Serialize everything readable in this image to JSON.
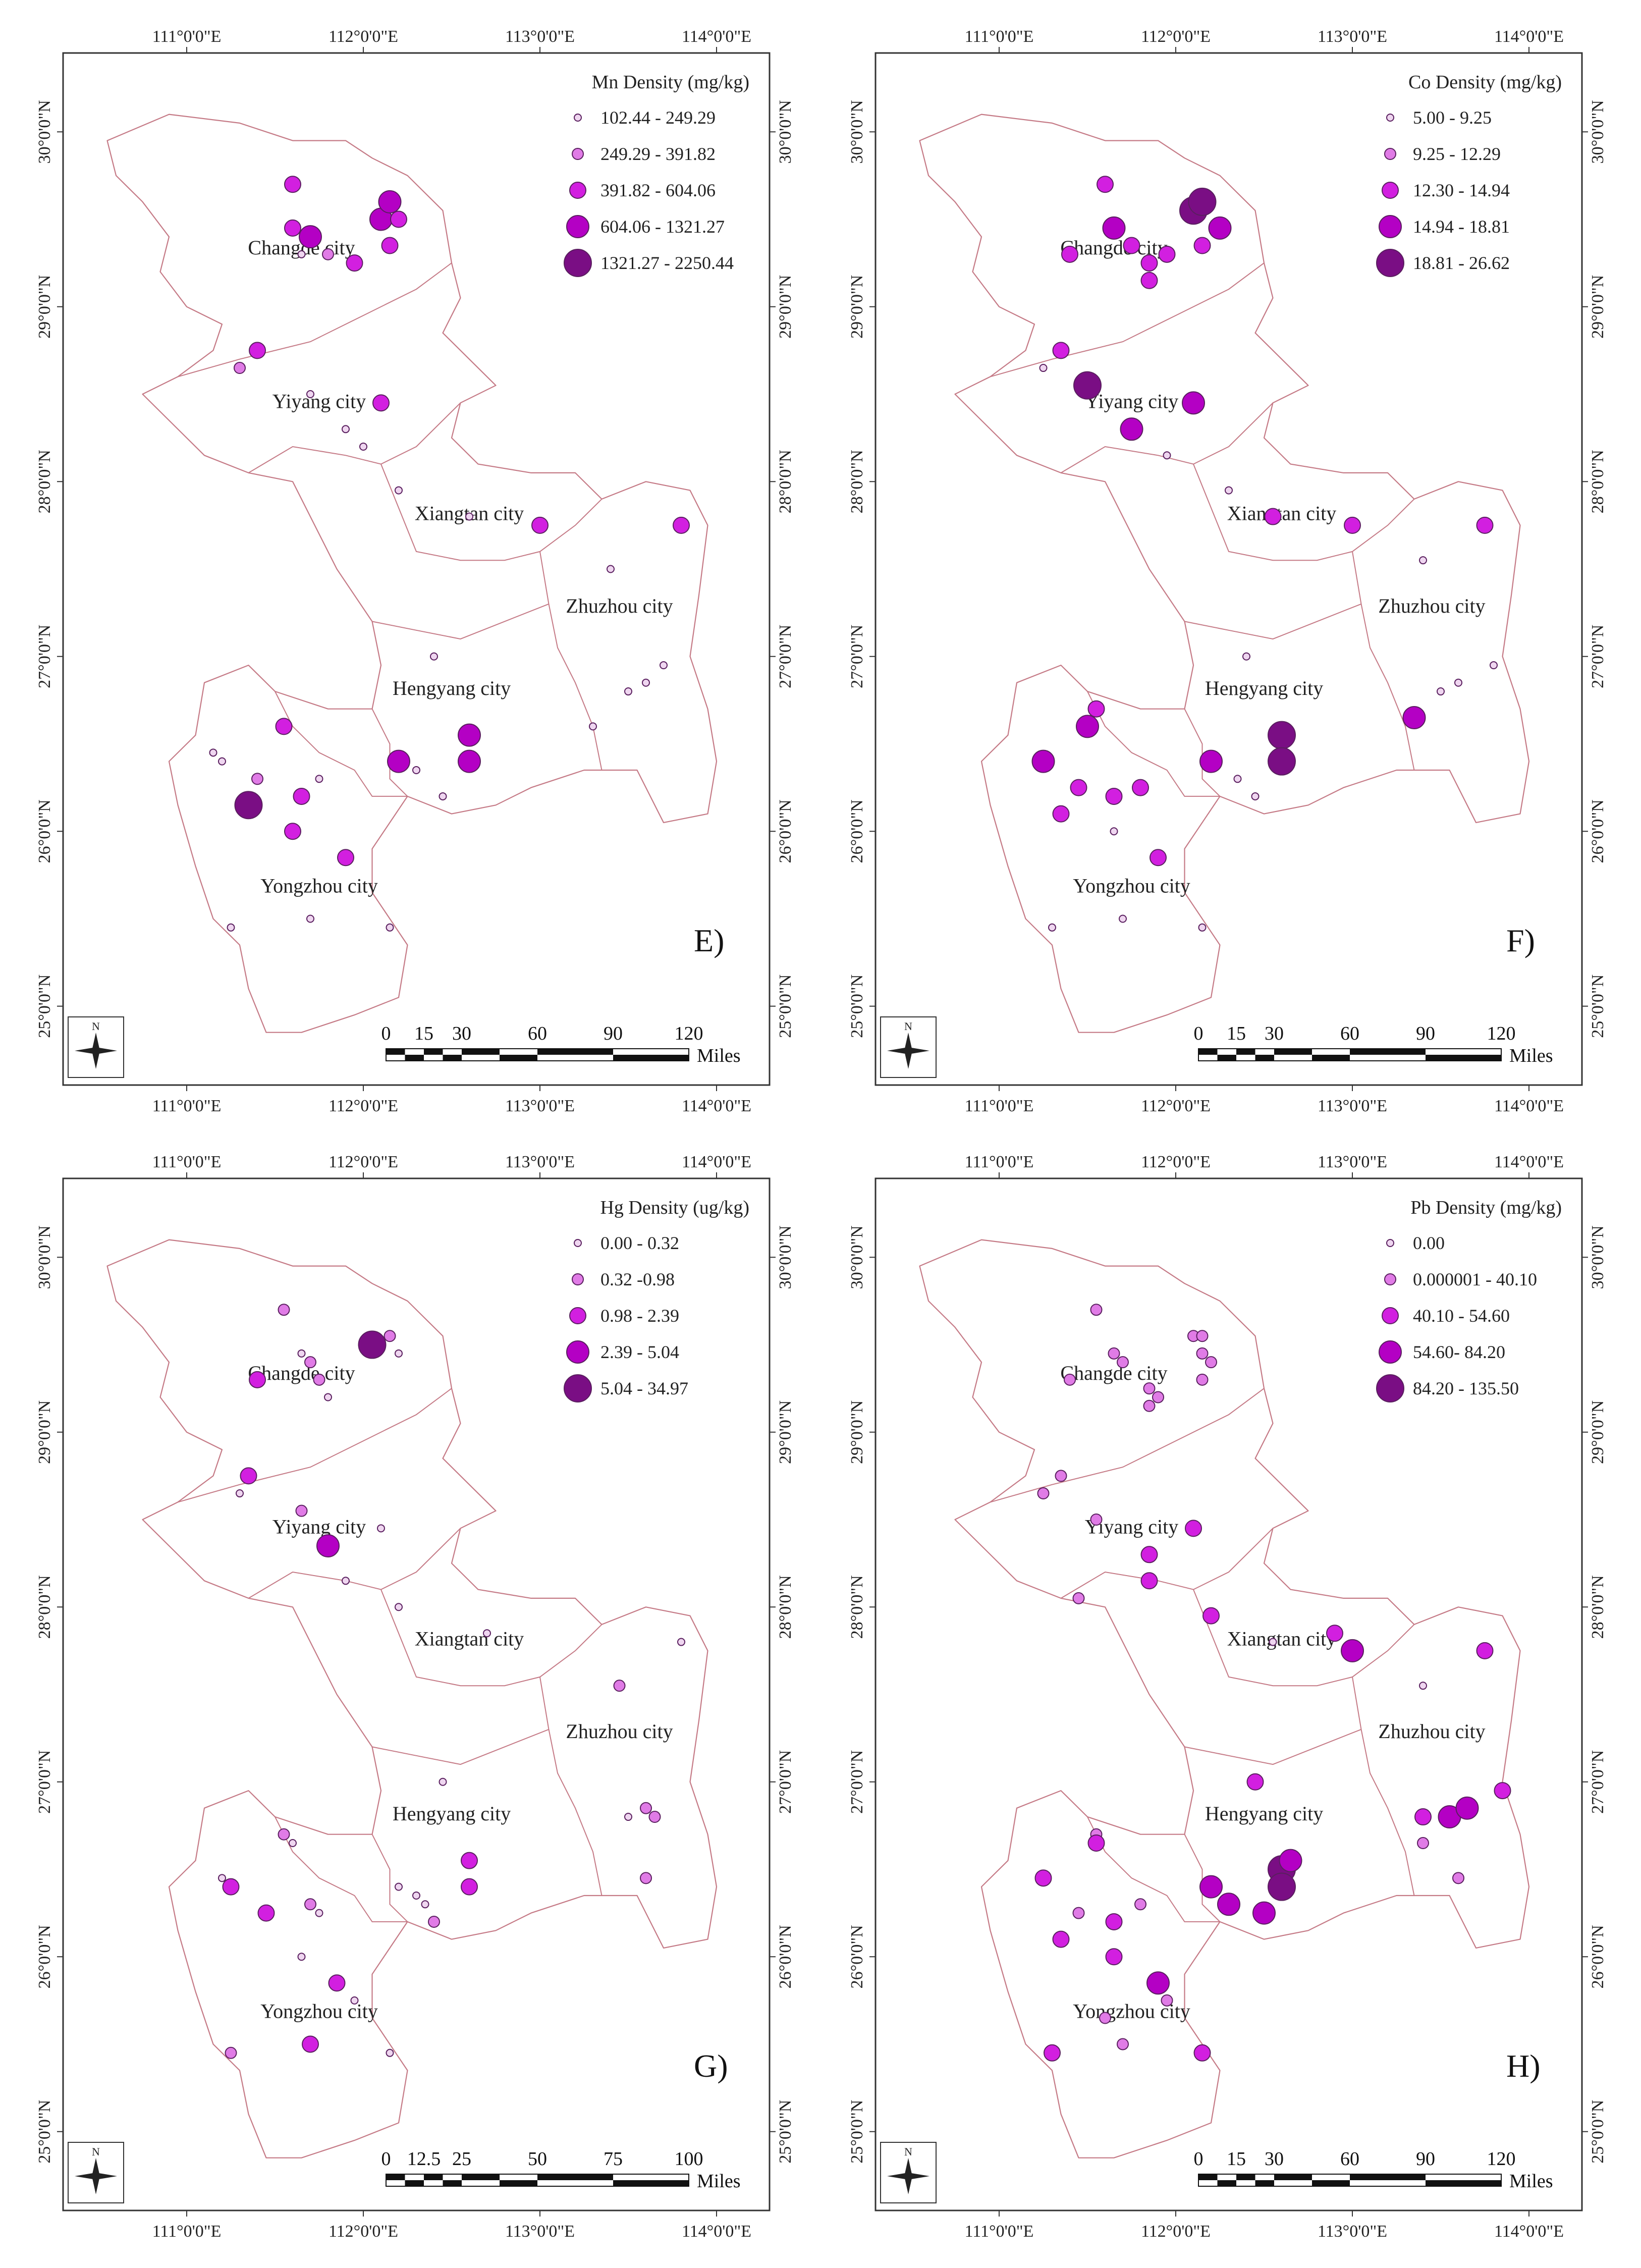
{
  "panels": [
    {
      "id": "E",
      "label": "E)",
      "legend_title": "Mn Density (mg/kg)",
      "classes": [
        "102.44 - 249.29",
        "249.29 - 391.82",
        "391.82 - 604.06",
        "604.06 - 1321.27",
        "1321.27 - 2250.44"
      ],
      "scale": {
        "ticks": [
          "0",
          "15",
          "30",
          "60",
          "90",
          "120"
        ],
        "unit": "Miles"
      },
      "points": [
        [
          111.6,
          29.7,
          3
        ],
        [
          111.7,
          29.4,
          4
        ],
        [
          111.6,
          29.45,
          3
        ],
        [
          111.8,
          29.3,
          2
        ],
        [
          111.95,
          29.25,
          3
        ],
        [
          112.1,
          29.5,
          4
        ],
        [
          112.15,
          29.6,
          4
        ],
        [
          112.2,
          29.5,
          3
        ],
        [
          112.15,
          29.35,
          3
        ],
        [
          111.65,
          29.3,
          1
        ],
        [
          111.4,
          28.75,
          3
        ],
        [
          111.3,
          28.65,
          2
        ],
        [
          112.1,
          28.45,
          3
        ],
        [
          111.7,
          28.5,
          1
        ],
        [
          111.9,
          28.3,
          1
        ],
        [
          112.0,
          28.2,
          1
        ],
        [
          112.2,
          27.95,
          1
        ],
        [
          112.6,
          27.8,
          1
        ],
        [
          113.0,
          27.75,
          3
        ],
        [
          113.8,
          27.75,
          3
        ],
        [
          113.4,
          27.5,
          1
        ],
        [
          112.4,
          27.0,
          1
        ],
        [
          113.6,
          26.85,
          1
        ],
        [
          113.7,
          26.95,
          1
        ],
        [
          113.5,
          26.8,
          1
        ],
        [
          113.3,
          26.6,
          1
        ],
        [
          111.55,
          26.6,
          3
        ],
        [
          112.2,
          26.4,
          4
        ],
        [
          112.3,
          26.35,
          1
        ],
        [
          112.6,
          26.55,
          4
        ],
        [
          112.6,
          26.4,
          4
        ],
        [
          112.45,
          26.2,
          1
        ],
        [
          111.65,
          26.2,
          3
        ],
        [
          111.4,
          26.3,
          2
        ],
        [
          111.35,
          26.15,
          5
        ],
        [
          111.6,
          26.0,
          3
        ],
        [
          111.75,
          26.3,
          1
        ],
        [
          111.9,
          25.85,
          3
        ],
        [
          111.2,
          26.4,
          1
        ],
        [
          111.7,
          25.5,
          1
        ],
        [
          112.15,
          25.45,
          1
        ],
        [
          111.25,
          25.45,
          1
        ],
        [
          111.15,
          26.45,
          1
        ]
      ]
    },
    {
      "id": "F",
      "label": "F)",
      "legend_title": "Co Density (mg/kg)",
      "classes": [
        "5.00 - 9.25",
        "9.25 - 12.29",
        "12.30 - 14.94",
        "14.94 - 18.81",
        "18.81 - 26.62"
      ],
      "scale": {
        "ticks": [
          "0",
          "15",
          "30",
          "60",
          "90",
          "120"
        ],
        "unit": "Miles"
      },
      "points": [
        [
          111.6,
          29.7,
          3
        ],
        [
          111.65,
          29.45,
          4
        ],
        [
          111.75,
          29.35,
          3
        ],
        [
          111.4,
          29.3,
          3
        ],
        [
          111.85,
          29.25,
          3
        ],
        [
          111.95,
          29.3,
          3
        ],
        [
          112.1,
          29.55,
          5
        ],
        [
          112.15,
          29.6,
          5
        ],
        [
          112.25,
          29.45,
          4
        ],
        [
          112.15,
          29.35,
          3
        ],
        [
          111.85,
          29.15,
          3
        ],
        [
          111.35,
          28.75,
          3
        ],
        [
          111.25,
          28.65,
          1
        ],
        [
          111.5,
          28.55,
          5
        ],
        [
          111.75,
          28.3,
          4
        ],
        [
          112.1,
          28.45,
          4
        ],
        [
          111.95,
          28.15,
          1
        ],
        [
          112.3,
          27.95,
          1
        ],
        [
          112.55,
          27.8,
          3
        ],
        [
          113.0,
          27.75,
          3
        ],
        [
          113.75,
          27.75,
          3
        ],
        [
          113.4,
          27.55,
          1
        ],
        [
          112.4,
          27.0,
          1
        ],
        [
          113.5,
          26.8,
          1
        ],
        [
          113.8,
          26.95,
          1
        ],
        [
          113.6,
          26.85,
          1
        ],
        [
          113.35,
          26.65,
          4
        ],
        [
          111.55,
          26.7,
          3
        ],
        [
          111.5,
          26.6,
          4
        ],
        [
          112.2,
          26.4,
          4
        ],
        [
          112.35,
          26.3,
          1
        ],
        [
          112.6,
          26.55,
          5
        ],
        [
          112.6,
          26.4,
          5
        ],
        [
          112.45,
          26.2,
          1
        ],
        [
          111.45,
          26.25,
          3
        ],
        [
          111.65,
          26.2,
          3
        ],
        [
          111.8,
          26.25,
          3
        ],
        [
          111.35,
          26.1,
          3
        ],
        [
          111.25,
          26.4,
          4
        ],
        [
          111.65,
          26.0,
          1
        ],
        [
          111.9,
          25.85,
          3
        ],
        [
          111.7,
          25.5,
          1
        ],
        [
          112.15,
          25.45,
          1
        ],
        [
          111.3,
          25.45,
          1
        ]
      ]
    },
    {
      "id": "G",
      "label": "G)",
      "legend_title": "Hg Density (ug/kg)",
      "classes": [
        "0.00 - 0.32",
        "0.32 -0.98",
        "0.98 - 2.39",
        "2.39 - 5.04",
        "5.04 - 34.97"
      ],
      "scale": {
        "ticks": [
          "0",
          "12.5",
          "25",
          "50",
          "75",
          "100"
        ],
        "unit": "Miles"
      },
      "points": [
        [
          111.55,
          29.7,
          2
        ],
        [
          111.65,
          29.45,
          1
        ],
        [
          111.7,
          29.4,
          2
        ],
        [
          111.75,
          29.3,
          2
        ],
        [
          111.8,
          29.2,
          1
        ],
        [
          112.05,
          29.5,
          5
        ],
        [
          112.15,
          29.55,
          2
        ],
        [
          112.2,
          29.45,
          1
        ],
        [
          111.4,
          29.3,
          3
        ],
        [
          111.35,
          28.75,
          3
        ],
        [
          111.3,
          28.65,
          1
        ],
        [
          111.65,
          28.55,
          2
        ],
        [
          112.1,
          28.45,
          1
        ],
        [
          111.8,
          28.35,
          4
        ],
        [
          111.9,
          28.15,
          1
        ],
        [
          112.2,
          28.0,
          1
        ],
        [
          112.7,
          27.85,
          1
        ],
        [
          113.45,
          27.55,
          2
        ],
        [
          113.8,
          27.8,
          1
        ],
        [
          112.45,
          27.0,
          1
        ],
        [
          113.5,
          26.8,
          1
        ],
        [
          113.6,
          26.85,
          2
        ],
        [
          113.65,
          26.8,
          2
        ],
        [
          113.6,
          26.45,
          2
        ],
        [
          111.55,
          26.7,
          2
        ],
        [
          111.6,
          26.65,
          1
        ],
        [
          111.25,
          26.4,
          3
        ],
        [
          111.2,
          26.45,
          1
        ],
        [
          111.45,
          26.25,
          3
        ],
        [
          111.7,
          26.3,
          2
        ],
        [
          111.75,
          26.25,
          1
        ],
        [
          111.65,
          26.0,
          1
        ],
        [
          112.2,
          26.4,
          1
        ],
        [
          112.3,
          26.35,
          1
        ],
        [
          112.35,
          26.3,
          1
        ],
        [
          112.6,
          26.55,
          3
        ],
        [
          112.6,
          26.4,
          3
        ],
        [
          112.4,
          26.2,
          2
        ],
        [
          111.85,
          25.85,
          3
        ],
        [
          111.95,
          25.75,
          1
        ],
        [
          111.7,
          25.5,
          3
        ],
        [
          112.15,
          25.45,
          1
        ],
        [
          111.25,
          25.45,
          2
        ]
      ]
    },
    {
      "id": "H",
      "label": "H)",
      "legend_title": "Pb Density (mg/kg)",
      "classes": [
        "0.00",
        "0.000001 - 40.10",
        "40.10 - 54.60",
        "54.60- 84.20",
        "84.20 - 135.50"
      ],
      "scale": {
        "ticks": [
          "0",
          "15",
          "30",
          "60",
          "90",
          "120"
        ],
        "unit": "Miles"
      },
      "points": [
        [
          111.55,
          29.7,
          2
        ],
        [
          111.65,
          29.45,
          2
        ],
        [
          111.7,
          29.4,
          2
        ],
        [
          111.4,
          29.3,
          2
        ],
        [
          111.85,
          29.25,
          2
        ],
        [
          111.9,
          29.2,
          2
        ],
        [
          112.1,
          29.55,
          2
        ],
        [
          112.15,
          29.55,
          2
        ],
        [
          112.15,
          29.45,
          2
        ],
        [
          112.2,
          29.4,
          2
        ],
        [
          112.15,
          29.3,
          2
        ],
        [
          111.85,
          29.15,
          2
        ],
        [
          111.35,
          28.75,
          2
        ],
        [
          111.25,
          28.65,
          2
        ],
        [
          111.55,
          28.5,
          2
        ],
        [
          111.85,
          28.3,
          3
        ],
        [
          112.1,
          28.45,
          3
        ],
        [
          111.85,
          28.15,
          3
        ],
        [
          111.45,
          28.05,
          2
        ],
        [
          112.2,
          27.95,
          3
        ],
        [
          112.55,
          27.8,
          1
        ],
        [
          112.9,
          27.85,
          3
        ],
        [
          113.0,
          27.75,
          4
        ],
        [
          113.75,
          27.75,
          3
        ],
        [
          113.4,
          27.55,
          1
        ],
        [
          112.45,
          27.0,
          3
        ],
        [
          113.4,
          26.8,
          3
        ],
        [
          113.55,
          26.8,
          4
        ],
        [
          113.65,
          26.85,
          4
        ],
        [
          113.85,
          26.95,
          3
        ],
        [
          113.4,
          26.65,
          2
        ],
        [
          113.6,
          26.45,
          2
        ],
        [
          111.55,
          26.7,
          2
        ],
        [
          111.55,
          26.65,
          3
        ],
        [
          111.25,
          26.45,
          3
        ],
        [
          112.2,
          26.4,
          4
        ],
        [
          112.3,
          26.3,
          4
        ],
        [
          112.5,
          26.25,
          4
        ],
        [
          112.6,
          26.5,
          5
        ],
        [
          112.6,
          26.4,
          5
        ],
        [
          112.65,
          26.55,
          4
        ],
        [
          111.45,
          26.25,
          2
        ],
        [
          111.65,
          26.2,
          3
        ],
        [
          111.8,
          26.3,
          2
        ],
        [
          111.35,
          26.1,
          3
        ],
        [
          111.65,
          26.0,
          3
        ],
        [
          111.9,
          25.85,
          4
        ],
        [
          111.95,
          25.75,
          2
        ],
        [
          111.7,
          25.5,
          2
        ],
        [
          112.15,
          25.45,
          3
        ],
        [
          111.3,
          25.45,
          3
        ],
        [
          111.6,
          25.65,
          2
        ]
      ]
    }
  ],
  "cities": [
    {
      "name": "Changde city",
      "lon": 111.65,
      "lat": 29.3
    },
    {
      "name": "Yiyang city",
      "lon": 111.75,
      "lat": 28.42
    },
    {
      "name": "Xiangtan city",
      "lon": 112.6,
      "lat": 27.78
    },
    {
      "name": "Zhuzhou city",
      "lon": 113.45,
      "lat": 27.25
    },
    {
      "name": "Hengyang city",
      "lon": 112.5,
      "lat": 26.78
    },
    {
      "name": "Yongzhou city",
      "lon": 111.75,
      "lat": 25.65
    }
  ],
  "lon_ticks": [
    "111°0'0\"E",
    "112°0'0\"E",
    "113°0'0\"E",
    "114°0'0\"E"
  ],
  "lat_ticks": [
    "30°0'0\"N",
    "29°0'0\"N",
    "28°0'0\"N",
    "27°0'0\"N",
    "26°0'0\"N",
    "25°0'0\"N"
  ],
  "north_arrow": {
    "letter": "N",
    "icon": "north-arrow-icon"
  },
  "colors": {
    "boundary": "#c57a86",
    "class1": "#efd6f0",
    "class2": "#e07be6",
    "class3": "#d21fe0",
    "class4": "#b400c4",
    "class5": "#7a0e84",
    "outline": "#5a1f5f"
  }
}
